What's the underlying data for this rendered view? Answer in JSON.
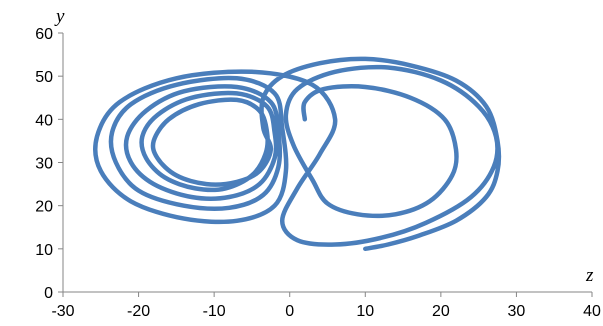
{
  "chart_data": {
    "type": "line",
    "title": "",
    "xlabel": "z",
    "ylabel": "y",
    "xlim": [
      -30,
      40
    ],
    "ylim": [
      0,
      60
    ],
    "x_ticks": [
      -30,
      -20,
      -10,
      0,
      10,
      20,
      30,
      40
    ],
    "y_ticks": [
      0,
      10,
      20,
      30,
      40,
      50,
      60
    ],
    "x_tick_labels": [
      "-30",
      "-20",
      "-10",
      "0",
      "10",
      "20",
      "30",
      "40"
    ],
    "y_tick_labels": [
      "0",
      "10",
      "20",
      "30",
      "40",
      "50",
      "60"
    ],
    "grid": false,
    "legend": "none",
    "series": [
      {
        "color": "#4A7EBB",
        "points": [
          [
            10,
            10
          ],
          [
            13,
            11
          ],
          [
            17,
            13
          ],
          [
            22,
            16.5
          ],
          [
            26,
            22
          ],
          [
            27.5,
            28
          ],
          [
            27.5,
            35
          ],
          [
            26,
            43
          ],
          [
            22,
            49
          ],
          [
            16,
            52.5
          ],
          [
            10,
            54
          ],
          [
            4,
            53
          ],
          [
            -1,
            50
          ],
          [
            -3.5,
            45
          ],
          [
            -3.5,
            38
          ],
          [
            -2.5,
            33
          ],
          [
            -4,
            28
          ],
          [
            -7,
            25.5
          ],
          [
            -11,
            25
          ],
          [
            -15,
            27
          ],
          [
            -17.5,
            31
          ],
          [
            -18,
            35
          ],
          [
            -16,
            40
          ],
          [
            -12,
            43.5
          ],
          [
            -7,
            44.5
          ],
          [
            -4,
            42
          ],
          [
            -3,
            37
          ],
          [
            -3.2,
            32
          ],
          [
            -5,
            27
          ],
          [
            -8.5,
            24
          ],
          [
            -12.5,
            24
          ],
          [
            -16.5,
            26.5
          ],
          [
            -19,
            31
          ],
          [
            -19.5,
            36
          ],
          [
            -17.5,
            41
          ],
          [
            -13,
            45
          ],
          [
            -7,
            46
          ],
          [
            -3,
            43
          ],
          [
            -2,
            37
          ],
          [
            -2,
            31
          ],
          [
            -4,
            25
          ],
          [
            -8,
            22
          ],
          [
            -13,
            22
          ],
          [
            -18,
            25
          ],
          [
            -21,
            30
          ],
          [
            -21.5,
            36
          ],
          [
            -19,
            42
          ],
          [
            -14,
            46.5
          ],
          [
            -7,
            47.5
          ],
          [
            -2.5,
            44
          ],
          [
            -1.5,
            37
          ],
          [
            -1.5,
            29
          ],
          [
            -3.5,
            22.5
          ],
          [
            -8,
            19.5
          ],
          [
            -14,
            20
          ],
          [
            -20,
            23.5
          ],
          [
            -23,
            30
          ],
          [
            -23.5,
            37
          ],
          [
            -21,
            43.5
          ],
          [
            -15,
            48
          ],
          [
            -7,
            49.5
          ],
          [
            -2,
            46
          ],
          [
            -1,
            38
          ],
          [
            -0.5,
            28
          ],
          [
            -2,
            20
          ],
          [
            -7,
            16.5
          ],
          [
            -14,
            17
          ],
          [
            -21,
            21
          ],
          [
            -25,
            28
          ],
          [
            -25.5,
            36
          ],
          [
            -22.5,
            44
          ],
          [
            -15,
            49.5
          ],
          [
            -5,
            51
          ],
          [
            3,
            48
          ],
          [
            6,
            40
          ],
          [
            4,
            32
          ],
          [
            1,
            24
          ],
          [
            -1,
            16.5
          ],
          [
            1,
            12
          ],
          [
            6,
            11
          ],
          [
            12,
            12.5
          ],
          [
            18,
            16
          ],
          [
            24,
            22
          ],
          [
            27,
            29
          ],
          [
            27.3,
            36
          ],
          [
            25,
            43
          ],
          [
            20,
            49
          ],
          [
            13,
            52
          ],
          [
            6,
            51
          ],
          [
            1,
            47
          ],
          [
            -0.5,
            41
          ],
          [
            0.5,
            34
          ],
          [
            3,
            26
          ],
          [
            5,
            20.5
          ],
          [
            9,
            18
          ],
          [
            14,
            18
          ],
          [
            18.5,
            21
          ],
          [
            21.5,
            27
          ],
          [
            22,
            33
          ],
          [
            20.5,
            40
          ],
          [
            16,
            45
          ],
          [
            10,
            47.5
          ],
          [
            4.5,
            47
          ],
          [
            2,
            44
          ],
          [
            2,
            40
          ]
        ]
      }
    ]
  }
}
